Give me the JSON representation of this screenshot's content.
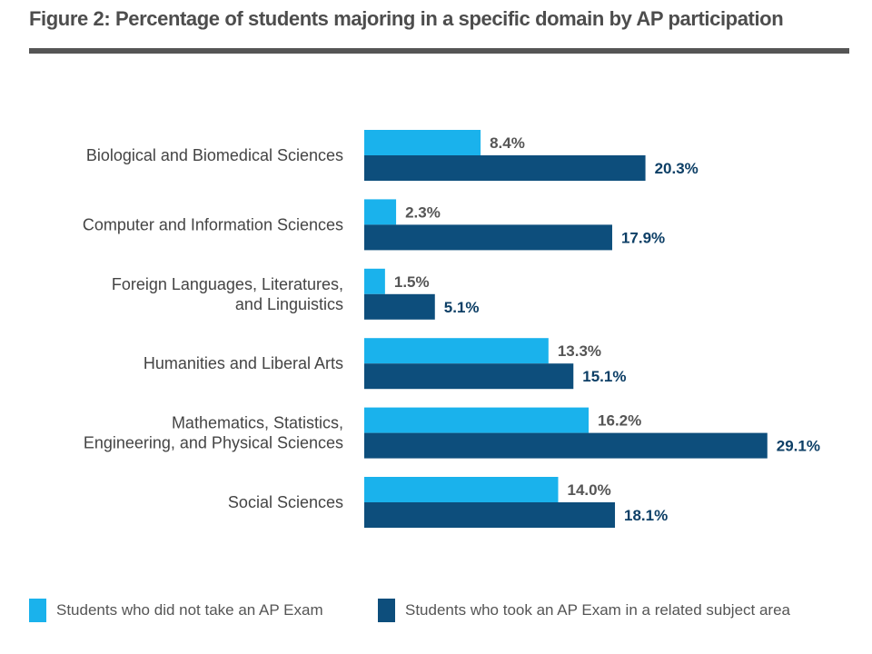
{
  "title": "Figure 2: Percentage of students majoring in a specific domain by AP participation",
  "colors": {
    "no_ap": "#1ab2ec",
    "ap": "#0d4e7c",
    "no_ap_label": "#555555",
    "ap_label": "#0d3f66",
    "category_label": "#444444"
  },
  "chart_data": {
    "type": "bar",
    "orientation": "horizontal",
    "categories": [
      [
        "Biological and Biomedical Sciences"
      ],
      [
        "Computer and Information Sciences"
      ],
      [
        "Foreign Languages, Literatures,",
        "and Linguistics"
      ],
      [
        "Humanities and Liberal Arts"
      ],
      [
        "Mathematics, Statistics,",
        "Engineering, and Physical Sciences"
      ],
      [
        "Social Sciences"
      ]
    ],
    "series": [
      {
        "name": "Students who did not take an AP Exam",
        "values": [
          8.4,
          2.3,
          1.5,
          13.3,
          16.2,
          14.0
        ],
        "labels": [
          "8.4%",
          "2.3%",
          "1.5%",
          "13.3%",
          "16.2%",
          "14.0%"
        ]
      },
      {
        "name": "Students who took an AP Exam in a related subject area",
        "values": [
          20.3,
          17.9,
          5.1,
          15.1,
          29.1,
          18.1
        ],
        "labels": [
          "20.3%",
          "17.9%",
          "5.1%",
          "15.1%",
          "29.1%",
          "18.1%"
        ]
      }
    ],
    "xlim": [
      0,
      30
    ],
    "grid": false,
    "legend": "bottom"
  }
}
